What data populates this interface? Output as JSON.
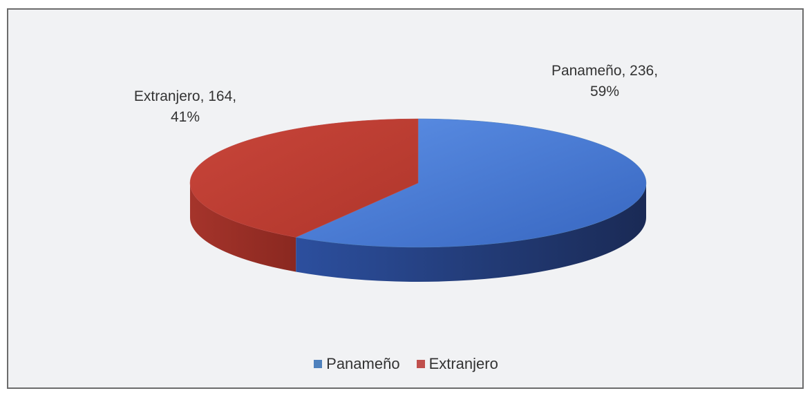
{
  "chart_data": {
    "type": "pie3d",
    "categories": [
      "Panameño",
      "Extranjero"
    ],
    "values": [
      236,
      164
    ],
    "value_labels": [
      "Panameño, 236, 59%",
      "Extranjero, 164, 41%"
    ],
    "colors": [
      "#4f81bd",
      "#c0504d"
    ],
    "legend": "bottom"
  }
}
